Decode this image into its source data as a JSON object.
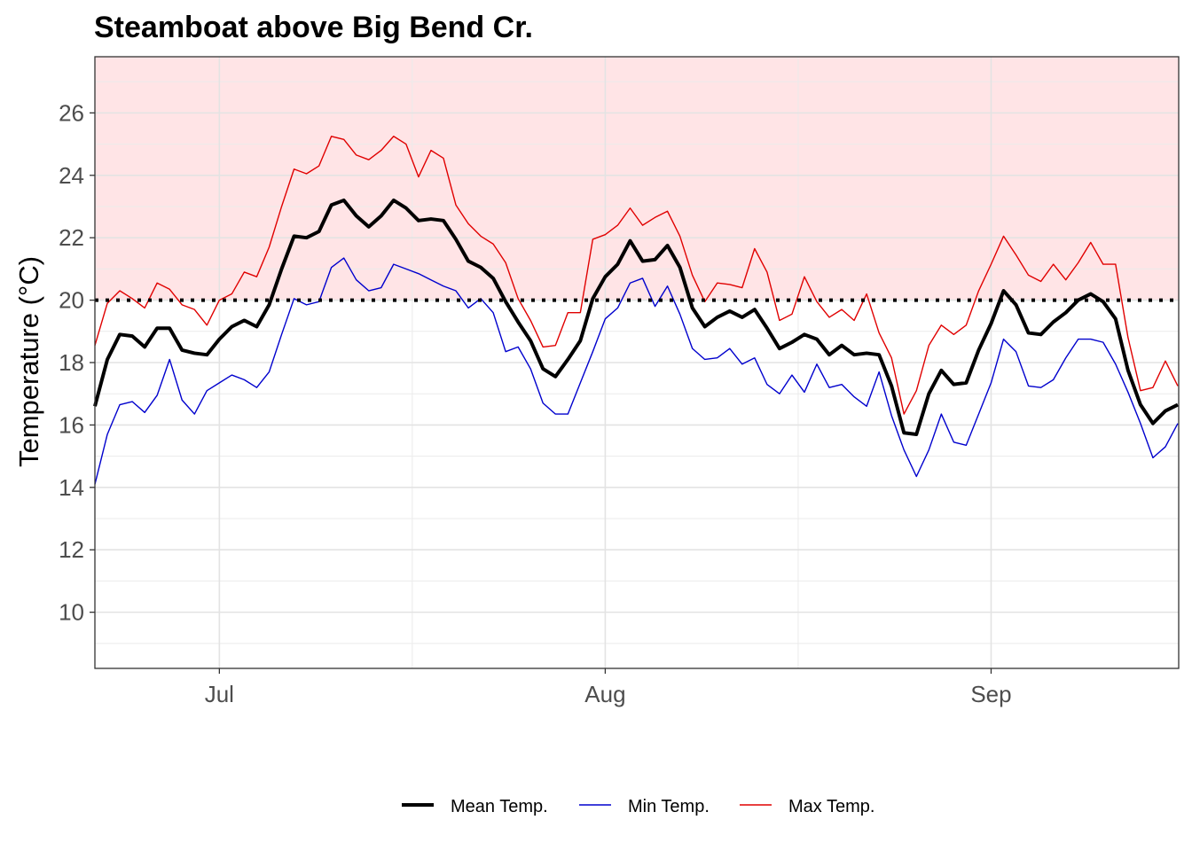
{
  "chart_data": {
    "type": "line",
    "title": "Steamboat above Big Bend Cr.",
    "xlabel": "",
    "ylabel": "Temperature (°C)",
    "ylim": [
      8.2,
      27.8
    ],
    "yticks": [
      10,
      12,
      14,
      16,
      18,
      20,
      22,
      24,
      26
    ],
    "x_start_date": "2023-06-21",
    "x_end_date": "2023-09-14",
    "xticks": [
      {
        "label": "Jul",
        "day": 10
      },
      {
        "label": "Aug",
        "day": 41
      },
      {
        "label": "Sep",
        "day": 72
      }
    ],
    "threshold": {
      "value": 20,
      "style": "dotted",
      "color": "#000000",
      "shade_color": "#ffe4e6"
    },
    "legend_position": "bottom",
    "colors": {
      "mean": "#000000",
      "min": "#0000cd",
      "max": "#e00000"
    },
    "series": [
      {
        "name": "Mean Temp.",
        "key": "mean",
        "values": [
          16.6,
          18.1,
          18.9,
          18.85,
          18.5,
          19.1,
          19.1,
          18.4,
          18.3,
          18.25,
          18.75,
          19.15,
          19.35,
          19.15,
          19.85,
          21.0,
          22.05,
          22.0,
          22.2,
          23.05,
          23.2,
          22.7,
          22.35,
          22.7,
          23.2,
          22.95,
          22.55,
          22.6,
          22.55,
          21.95,
          21.25,
          21.05,
          20.7,
          19.95,
          19.3,
          18.7,
          17.8,
          17.55,
          18.1,
          18.7,
          20.05,
          20.75,
          21.15,
          21.9,
          21.25,
          21.3,
          21.75,
          21.05,
          19.75,
          19.15,
          19.45,
          19.65,
          19.45,
          19.7,
          19.1,
          18.45,
          18.65,
          18.9,
          18.75,
          18.25,
          18.55,
          18.25,
          18.3,
          18.25,
          17.25,
          15.75,
          15.7,
          17.0,
          17.75,
          17.3,
          17.35,
          18.4,
          19.25,
          20.3,
          19.85,
          18.95,
          18.9,
          19.3,
          19.6,
          20.0,
          20.2,
          19.95,
          19.4,
          17.75,
          16.65,
          16.05,
          16.45,
          16.65
        ]
      },
      {
        "name": "Min Temp.",
        "key": "min",
        "values": [
          14.1,
          15.7,
          16.65,
          16.75,
          16.4,
          16.95,
          18.1,
          16.8,
          16.35,
          17.1,
          17.35,
          17.6,
          17.45,
          17.2,
          17.7,
          18.9,
          20.05,
          19.85,
          19.95,
          21.05,
          21.35,
          20.65,
          20.3,
          20.4,
          21.15,
          21.0,
          20.85,
          20.65,
          20.45,
          20.3,
          19.75,
          20.05,
          19.6,
          18.35,
          18.5,
          17.8,
          16.7,
          16.35,
          16.35,
          17.35,
          18.35,
          19.4,
          19.75,
          20.55,
          20.7,
          19.8,
          20.45,
          19.55,
          18.45,
          18.1,
          18.15,
          18.45,
          17.95,
          18.15,
          17.3,
          17.0,
          17.6,
          17.05,
          17.95,
          17.2,
          17.3,
          16.9,
          16.6,
          17.7,
          16.3,
          15.2,
          14.35,
          15.2,
          16.35,
          15.45,
          15.35,
          16.35,
          17.35,
          18.75,
          18.35,
          17.25,
          17.2,
          17.45,
          18.15,
          18.75,
          18.75,
          18.65,
          17.95,
          17.05,
          16.05,
          14.95,
          15.3,
          16.05
        ]
      },
      {
        "name": "Max Temp.",
        "key": "max",
        "values": [
          18.55,
          19.9,
          20.3,
          20.05,
          19.75,
          20.55,
          20.35,
          19.85,
          19.7,
          19.2,
          20.0,
          20.2,
          20.9,
          20.75,
          21.7,
          23.0,
          24.2,
          24.05,
          24.3,
          25.25,
          25.15,
          24.65,
          24.5,
          24.8,
          25.25,
          25.0,
          23.95,
          24.8,
          24.55,
          23.05,
          22.45,
          22.05,
          21.8,
          21.2,
          20.05,
          19.35,
          18.5,
          18.55,
          19.6,
          19.6,
          21.95,
          22.1,
          22.4,
          22.95,
          22.4,
          22.65,
          22.85,
          22.05,
          20.8,
          19.95,
          20.55,
          20.5,
          20.4,
          21.65,
          20.9,
          19.35,
          19.55,
          20.75,
          19.95,
          19.45,
          19.7,
          19.35,
          20.2,
          18.95,
          18.15,
          16.35,
          17.1,
          18.55,
          19.2,
          18.9,
          19.2,
          20.3,
          21.15,
          22.05,
          21.45,
          20.8,
          20.6,
          21.15,
          20.65,
          21.2,
          21.85,
          21.15,
          21.15,
          18.8,
          17.1,
          17.2,
          18.05,
          17.25
        ]
      }
    ]
  }
}
